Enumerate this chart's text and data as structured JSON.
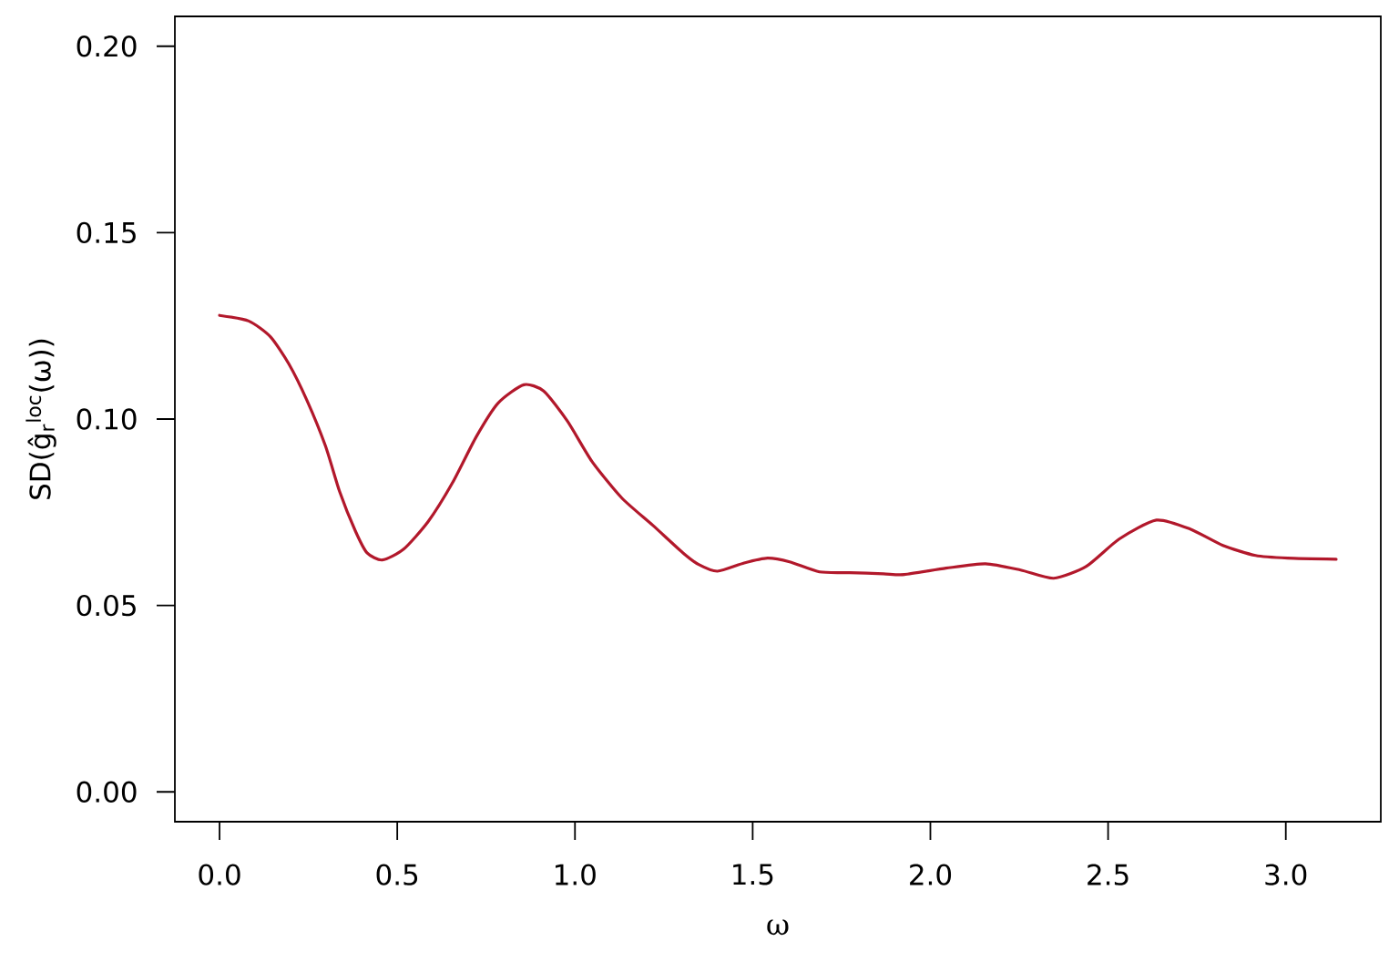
{
  "chart_data": {
    "type": "line",
    "xlabel": "ω",
    "ylabel": "SD(ĝ$_{r}$$^{loc}$(ω))",
    "x": [
      0,
      0.082,
      0.143,
      0.195,
      0.246,
      0.298,
      0.338,
      0.382,
      0.415,
      0.458,
      0.518,
      0.587,
      0.656,
      0.722,
      0.784,
      0.856,
      0.912,
      0.979,
      1.048,
      1.132,
      1.219,
      1.304,
      1.348,
      1.401,
      1.476,
      1.542,
      1.604,
      1.688,
      1.773,
      1.868,
      1.927,
      2.044,
      2.155,
      2.254,
      2.347,
      2.439,
      2.531,
      2.636,
      2.731,
      2.823,
      2.915,
      3.005,
      3.1416
    ],
    "values": [
      0.1278,
      0.1263,
      0.1221,
      0.1148,
      0.105,
      0.0928,
      0.0805,
      0.07,
      0.0641,
      0.0622,
      0.0651,
      0.0725,
      0.083,
      0.0952,
      0.1043,
      0.1092,
      0.1075,
      0.0994,
      0.0886,
      0.0788,
      0.0715,
      0.0641,
      0.061,
      0.0592,
      0.0614,
      0.0627,
      0.0617,
      0.059,
      0.0588,
      0.0585,
      0.0583,
      0.06,
      0.0612,
      0.0595,
      0.0573,
      0.0605,
      0.0678,
      0.0729,
      0.0705,
      0.0661,
      0.0634,
      0.0627,
      0.0624
    ],
    "color": "#b2182b",
    "xlim": [
      -0.1257,
      3.2673
    ],
    "ylim": [
      -0.008,
      0.208
    ],
    "xticks": [
      {
        "value": 0,
        "label": "0.0"
      },
      0.5,
      {
        "value": 1,
        "label": "1.0"
      },
      1.5,
      {
        "value": 2,
        "label": "2.0"
      },
      2.5,
      {
        "value": 3,
        "label": "3.0"
      }
    ],
    "yticks": [
      {
        "value": 0,
        "label": "0.00"
      },
      0.05,
      {
        "value": 0.1,
        "label": "0.10"
      },
      0.15,
      {
        "value": 0.2,
        "label": "0.20"
      }
    ]
  }
}
